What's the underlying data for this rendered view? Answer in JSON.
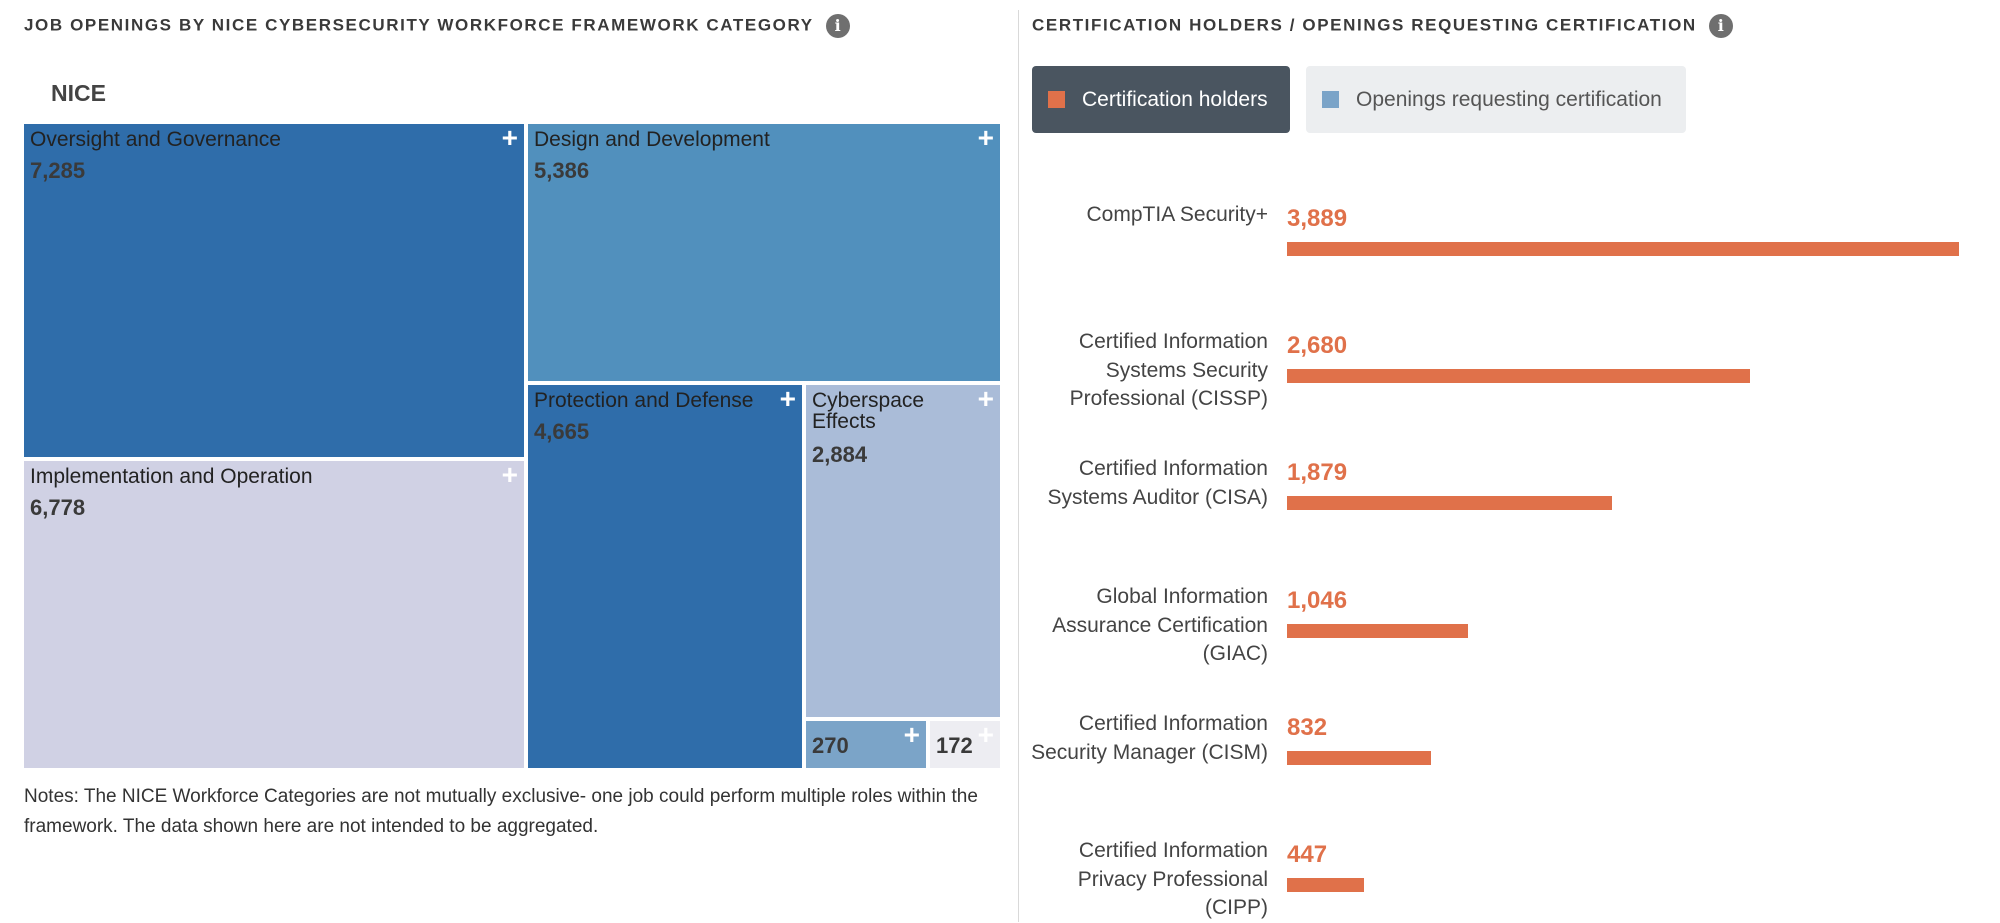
{
  "left_panel": {
    "title": "JOB OPENINGS BY NICE CYBERSECURITY WORKFORCE FRAMEWORK CATEGORY",
    "info_icon": "info-icon",
    "root_label": "NICE",
    "notes": "Notes: The NICE Workforce Categories are not mutually exclusive- one job could perform multiple roles within the framework. The data shown here are not intended to be aggregated."
  },
  "right_panel": {
    "title": "CERTIFICATION HOLDERS / OPENINGS REQUESTING CERTIFICATION",
    "info_icon": "info-icon",
    "legend": {
      "holders": "Certification holders",
      "openings": "Openings requesting certification"
    }
  },
  "colors": {
    "dark_blue": "#2f6daa",
    "mid_blue": "#5190bd",
    "light_blue_grey": "#aabcd8",
    "lavender": "#d0d1e4",
    "small_blue": "#7ba4c8",
    "small_grey": "#ededf2",
    "bar_orange": "#e0714a",
    "legend_active": "#4a5560",
    "legend_openings_swatch": "#7ba4c8"
  },
  "chart_data": [
    {
      "type": "treemap",
      "title": "JOB OPENINGS BY NICE CYBERSECURITY WORKFORCE FRAMEWORK CATEGORY",
      "root": "NICE",
      "nodes": [
        {
          "name": "Oversight and Governance",
          "value": 7285,
          "label": "7,285"
        },
        {
          "name": "Implementation and Operation",
          "value": 6778,
          "label": "6,778"
        },
        {
          "name": "Design and Development",
          "value": 5386,
          "label": "5,386"
        },
        {
          "name": "Protection and Defense",
          "value": 4665,
          "label": "4,665"
        },
        {
          "name": "Cyberspace Effects",
          "value": 2884,
          "label": "2,884"
        },
        {
          "name": "",
          "value": 270,
          "label": "270"
        },
        {
          "name": "",
          "value": 172,
          "label": "172"
        }
      ]
    },
    {
      "type": "bar",
      "orientation": "horizontal",
      "title": "CERTIFICATION HOLDERS / OPENINGS REQUESTING CERTIFICATION",
      "series": [
        {
          "name": "Certification holders",
          "color": "#e0714a"
        }
      ],
      "categories": [
        "CompTIA Security+",
        "Certified Information Systems Security Professional (CISSP)",
        "Certified Information Systems Auditor (CISA)",
        "Global Information Assurance Certification (GIAC)",
        "Certified Information Security Manager (CISM)",
        "Certified Information Privacy Professional (CIPP)"
      ],
      "category_lines": [
        [
          "CompTIA Security+"
        ],
        [
          "Certified Information",
          "Systems Security",
          "Professional (CISSP)"
        ],
        [
          "Certified Information",
          "Systems Auditor (CISA)"
        ],
        [
          "Global Information",
          "Assurance Certification",
          "(GIAC)"
        ],
        [
          "Certified Information",
          "Security Manager (CISM)"
        ],
        [
          "Certified Information",
          "Privacy Professional",
          "(CIPP)"
        ]
      ],
      "values": [
        3889,
        2680,
        1879,
        1046,
        832,
        447
      ],
      "value_labels": [
        "3,889",
        "2,680",
        "1,879",
        "1,046",
        "832",
        "447"
      ],
      "xlim": [
        0,
        3889
      ]
    }
  ]
}
